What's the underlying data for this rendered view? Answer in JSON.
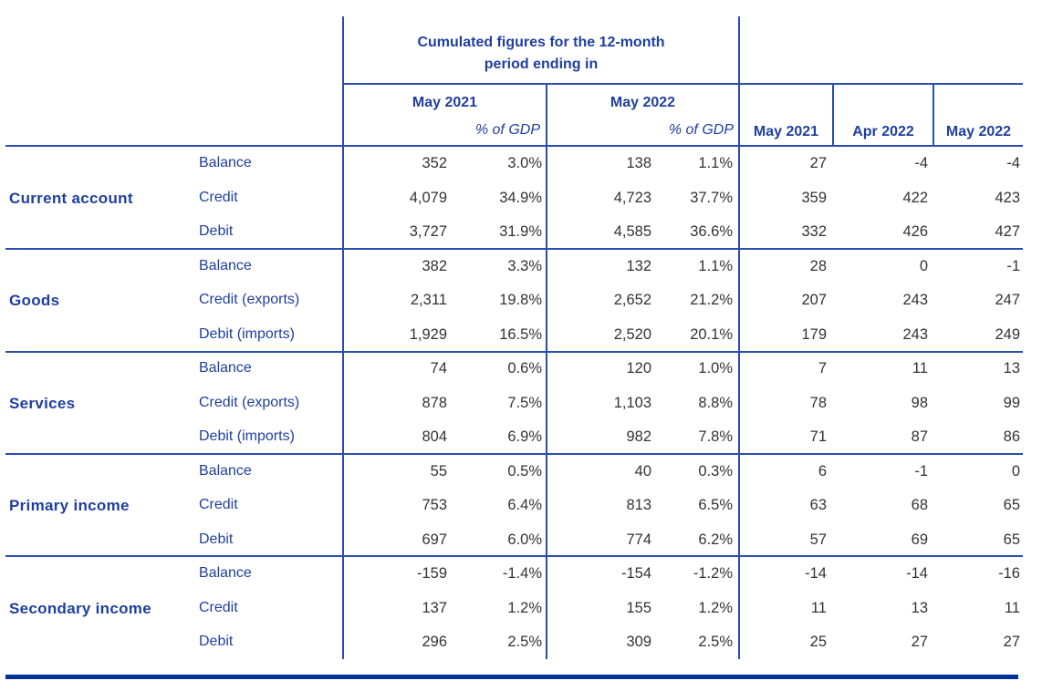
{
  "header": {
    "group_title_line1": "Cumulated figures for the 12-month",
    "group_title_line2": "period ending in",
    "cumulated_periods": [
      {
        "label": "May 2021",
        "sublabel": "% of GDP"
      },
      {
        "label": "May 2022",
        "sublabel": "% of GDP"
      }
    ],
    "monthly_periods": [
      "May 2021",
      "Apr 2022",
      "May 2022"
    ]
  },
  "sections": [
    {
      "name": "Current account",
      "rows": [
        {
          "label": "Balance",
          "values": [
            "352",
            "3.0%",
            "138",
            "1.1%",
            "27",
            "-4",
            "-4"
          ]
        },
        {
          "label": "Credit",
          "values": [
            "4,079",
            "34.9%",
            "4,723",
            "37.7%",
            "359",
            "422",
            "423"
          ]
        },
        {
          "label": "Debit",
          "values": [
            "3,727",
            "31.9%",
            "4,585",
            "36.6%",
            "332",
            "426",
            "427"
          ]
        }
      ]
    },
    {
      "name": "Goods",
      "rows": [
        {
          "label": "Balance",
          "values": [
            "382",
            "3.3%",
            "132",
            "1.1%",
            "28",
            "0",
            "-1"
          ]
        },
        {
          "label": "Credit (exports)",
          "values": [
            "2,311",
            "19.8%",
            "2,652",
            "21.2%",
            "207",
            "243",
            "247"
          ]
        },
        {
          "label": "Debit (imports)",
          "values": [
            "1,929",
            "16.5%",
            "2,520",
            "20.1%",
            "179",
            "243",
            "249"
          ]
        }
      ]
    },
    {
      "name": "Services",
      "rows": [
        {
          "label": "Balance",
          "values": [
            "74",
            "0.6%",
            "120",
            "1.0%",
            "7",
            "11",
            "13"
          ]
        },
        {
          "label": "Credit (exports)",
          "values": [
            "878",
            "7.5%",
            "1,103",
            "8.8%",
            "78",
            "98",
            "99"
          ]
        },
        {
          "label": "Debit (imports)",
          "values": [
            "804",
            "6.9%",
            "982",
            "7.8%",
            "71",
            "87",
            "86"
          ]
        }
      ]
    },
    {
      "name": "Primary income",
      "rows": [
        {
          "label": "Balance",
          "values": [
            "55",
            "0.5%",
            "40",
            "0.3%",
            "6",
            "-1",
            "0"
          ]
        },
        {
          "label": "Credit",
          "values": [
            "753",
            "6.4%",
            "813",
            "6.5%",
            "63",
            "68",
            "65"
          ]
        },
        {
          "label": "Debit",
          "values": [
            "697",
            "6.0%",
            "774",
            "6.2%",
            "57",
            "69",
            "65"
          ]
        }
      ]
    },
    {
      "name": "Secondary income",
      "rows": [
        {
          "label": "Balance",
          "values": [
            "-159",
            "-1.4%",
            "-154",
            "-1.2%",
            "-14",
            "-14",
            "-16"
          ]
        },
        {
          "label": "Credit",
          "values": [
            "137",
            "1.2%",
            "155",
            "1.2%",
            "11",
            "13",
            "11"
          ]
        },
        {
          "label": "Debit",
          "values": [
            "296",
            "2.5%",
            "309",
            "2.5%",
            "25",
            "27",
            "27"
          ]
        }
      ]
    }
  ],
  "colors": {
    "header_text": "#1f3fa0",
    "rule": "#2a4db0",
    "bottom_rule": "#003299",
    "value_text": "#333333"
  }
}
